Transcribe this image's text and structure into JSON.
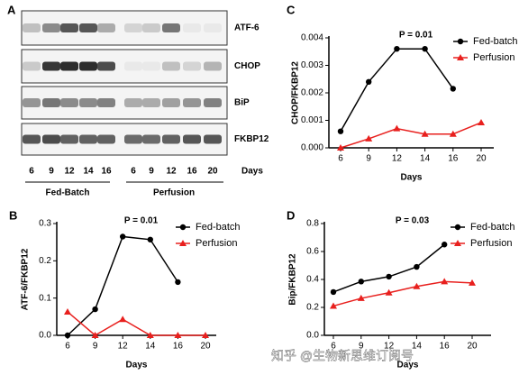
{
  "blot": {
    "panel": "A",
    "rows": [
      "ATF-6",
      "CHOP",
      "BiP",
      "FKBP12"
    ],
    "days_label": "Days",
    "lanes": [
      "6",
      "9",
      "12",
      "14",
      "16",
      "6",
      "9",
      "12",
      "16",
      "20"
    ],
    "groups": [
      "Fed-Batch",
      "Perfusion"
    ]
  },
  "watermark": "知乎 @生物新思维订阅号",
  "chart_data": [
    {
      "type": "line",
      "panel": "B",
      "title": "P = 0.01",
      "x_label": "Days",
      "y_label": "ATF-6/FKBP12",
      "categories": [
        "6",
        "9",
        "12",
        "14",
        "16",
        "20"
      ],
      "legend": "upper right",
      "ylim": [
        0,
        0.3
      ],
      "yticks": [
        {
          "value": 0,
          "label": "0.0"
        },
        0.1,
        0.2,
        0.3
      ],
      "series": [
        {
          "name": "Fed-batch",
          "color": "#000000",
          "marker": "circle",
          "values": [
            0,
            0.07,
            0.265,
            0.257,
            0.143,
            null
          ]
        },
        {
          "name": "Perfusion",
          "color": "#e8201e",
          "marker": "triangle",
          "values": [
            0.063,
            0,
            0.043,
            0,
            0,
            0
          ]
        }
      ]
    },
    {
      "type": "line",
      "panel": "C",
      "title": "P = 0.01",
      "x_label": "Days",
      "y_label": "CHOP/FKBP12",
      "categories": [
        "6",
        "9",
        "12",
        "14",
        "16",
        "20"
      ],
      "legend": "upper right",
      "ylim": [
        0,
        0.004
      ],
      "yticks": [
        {
          "value": 0,
          "label": "0.000"
        },
        0.001,
        0.002,
        0.003,
        0.004
      ],
      "series": [
        {
          "name": "Fed-batch",
          "color": "#000000",
          "marker": "circle",
          "values": [
            0.0006,
            0.0024,
            0.0036,
            0.0036,
            0.00215,
            null
          ]
        },
        {
          "name": "Perfusion",
          "color": "#e8201e",
          "marker": "triangle",
          "values": [
            0,
            0.00033,
            0.0007,
            0.0005,
            0.0005,
            0.00092
          ]
        }
      ]
    },
    {
      "type": "line",
      "panel": "D",
      "title": "P = 0.03",
      "x_label": "Days",
      "y_label": "Bip/FKBP12",
      "categories": [
        "6",
        "9",
        "12",
        "14",
        "16",
        "20"
      ],
      "legend": "upper right",
      "ylim": [
        0,
        0.8
      ],
      "yticks": [
        {
          "value": 0,
          "label": "0.0"
        },
        0.2,
        0.4,
        0.6,
        0.8
      ],
      "series": [
        {
          "name": "Fed-batch",
          "color": "#000000",
          "marker": "circle",
          "values": [
            0.31,
            0.385,
            0.42,
            0.49,
            0.65,
            null
          ]
        },
        {
          "name": "Perfusion",
          "color": "#e8201e",
          "marker": "triangle",
          "values": [
            0.21,
            0.265,
            0.305,
            0.35,
            0.385,
            0.375
          ]
        }
      ]
    }
  ]
}
